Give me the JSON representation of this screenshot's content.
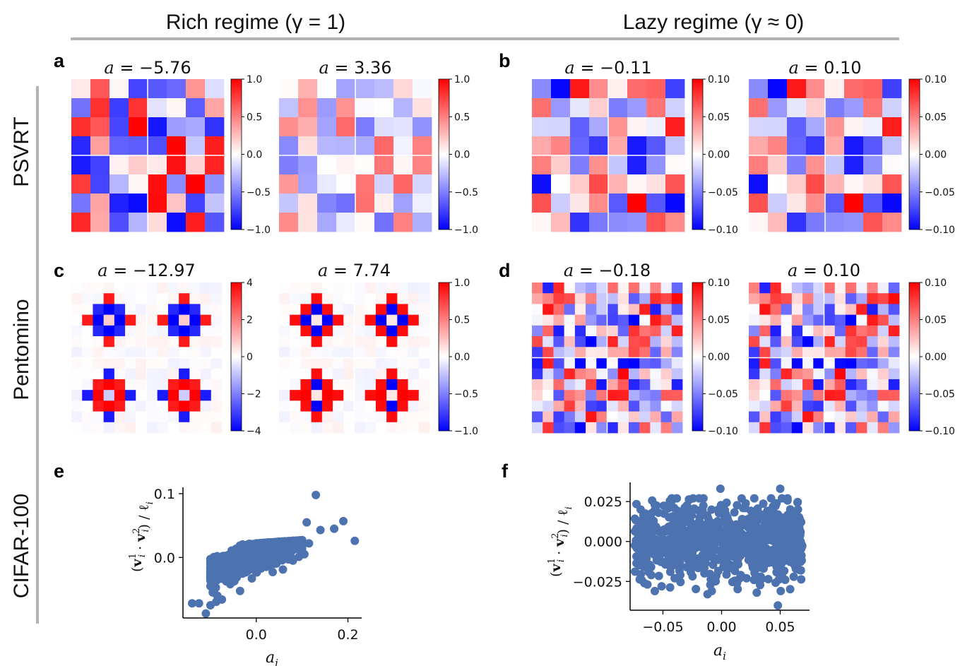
{
  "header": {
    "col_rich": "Rich regime (γ = 1)",
    "col_lazy": "Lazy regime (γ ≈ 0)"
  },
  "rows": {
    "psvrt": "PSVRT",
    "pentomino": "Pentomino",
    "cifar": "CIFAR-100"
  },
  "colors": {
    "point": "#4c72b0",
    "divider": "#b3b3b3",
    "cmap_neg": "#0000ff",
    "cmap_mid": "#ffffff",
    "cmap_pos": "#ff0000"
  },
  "chart_data": [
    {
      "id": "a",
      "letter": "a",
      "type": "heatmap",
      "maps": [
        {
          "title_var": "a",
          "title_val": "−5.76",
          "vmin": -1.0,
          "vmax": 1.0,
          "cb_ticks": [
            "1.0",
            "0.5",
            "0.0",
            "−0.5",
            "−1.0"
          ],
          "pattern": "psvrt_rich_1"
        },
        {
          "title_var": "a",
          "title_val": "3.36",
          "vmin": -1.0,
          "vmax": 1.0,
          "cb_ticks": [
            "1.0",
            "0.5",
            "0.0",
            "−0.5",
            "−1.0"
          ],
          "pattern": "psvrt_rich_2"
        }
      ]
    },
    {
      "id": "b",
      "letter": "b",
      "type": "heatmap",
      "maps": [
        {
          "title_var": "a",
          "title_val": "−0.11",
          "vmin": -0.1,
          "vmax": 0.1,
          "cb_ticks": [
            "0.10",
            "0.05",
            "0.00",
            "−0.05",
            "−0.10"
          ],
          "pattern": "psvrt_lazy_1"
        },
        {
          "title_var": "a",
          "title_val": "0.10",
          "vmin": -0.1,
          "vmax": 0.1,
          "cb_ticks": [
            "0.10",
            "0.05",
            "0.00",
            "−0.05",
            "−0.10"
          ],
          "pattern": "psvrt_lazy_2"
        }
      ]
    },
    {
      "id": "c",
      "letter": "c",
      "type": "heatmap",
      "maps": [
        {
          "title_var": "a",
          "title_val": "−12.97",
          "vmin": -4,
          "vmax": 4,
          "cb_ticks": [
            "4",
            "2",
            "0",
            "−2",
            "−4"
          ],
          "pattern": "pento_rich_1"
        },
        {
          "title_var": "a",
          "title_val": "7.74",
          "vmin": -1.0,
          "vmax": 1.0,
          "cb_ticks": [
            "1.0",
            "0.5",
            "0.0",
            "−0.5",
            "−1.0"
          ],
          "pattern": "pento_rich_2"
        }
      ]
    },
    {
      "id": "d",
      "letter": "d",
      "type": "heatmap",
      "maps": [
        {
          "title_var": "a",
          "title_val": "−0.18",
          "vmin": -0.1,
          "vmax": 0.1,
          "cb_ticks": [
            "0.10",
            "0.05",
            "0.00",
            "−0.05",
            "−0.10"
          ],
          "pattern": "pento_lazy_1"
        },
        {
          "title_var": "a",
          "title_val": "0.10",
          "vmin": -0.1,
          "vmax": 0.1,
          "cb_ticks": [
            "0.10",
            "0.05",
            "0.00",
            "−0.05",
            "−0.10"
          ],
          "pattern": "pento_lazy_2"
        }
      ]
    },
    {
      "id": "e",
      "letter": "e",
      "type": "scatter",
      "xlabel": "a_i",
      "ylabel": "(v_i^1 · v_i^2) / ℓ_i",
      "xlim": [
        -0.16,
        0.23
      ],
      "ylim": [
        -0.095,
        0.11
      ],
      "xticks": [
        0.0,
        0.2
      ],
      "xtick_labels": [
        "0.0",
        "0.2"
      ],
      "yticks": [
        0.0,
        0.1
      ],
      "ytick_labels": [
        "0.0",
        "0.1"
      ],
      "cloud": {
        "x_center": -0.01,
        "x_spread": 0.05,
        "slope": 0.25,
        "y_spread": 0.012,
        "count": 700
      },
      "outliers": [
        [
          0.13,
          0.098
        ],
        [
          0.19,
          0.057
        ],
        [
          0.215,
          0.026
        ],
        [
          0.17,
          0.045
        ],
        [
          0.11,
          0.055
        ],
        [
          0.14,
          0.043
        ],
        [
          0.115,
          0.022
        ],
        [
          0.095,
          0.012
        ],
        [
          0.08,
          -0.005
        ],
        [
          0.07,
          -0.003
        ],
        [
          0.105,
          0.005
        ],
        [
          -0.14,
          -0.072
        ],
        [
          -0.125,
          -0.072
        ],
        [
          -0.11,
          -0.088
        ],
        [
          -0.095,
          -0.055
        ],
        [
          -0.085,
          -0.06
        ],
        [
          -0.075,
          -0.066
        ],
        [
          -0.1,
          -0.075
        ],
        [
          0.093,
          0.001
        ]
      ]
    },
    {
      "id": "f",
      "letter": "f",
      "type": "scatter",
      "xlabel": "a_i",
      "ylabel": "(v_i^1 · v_i^2) / ℓ_i",
      "xlim": [
        -0.078,
        0.075
      ],
      "ylim": [
        -0.043,
        0.037
      ],
      "xticks": [
        -0.05,
        0.0,
        0.05
      ],
      "xtick_labels": [
        "−0.05",
        "0.00",
        "0.05"
      ],
      "yticks": [
        0.025,
        0.0,
        -0.025
      ],
      "ytick_labels": [
        "0.025",
        "0.000",
        "−0.025"
      ],
      "cloud": {
        "x_min": -0.074,
        "x_max": 0.069,
        "y_spread": 0.0115,
        "count": 900
      },
      "outliers": [
        [
          -0.001,
          0.033
        ],
        [
          0.05,
          0.033
        ],
        [
          -0.066,
          -0.016
        ],
        [
          -0.06,
          -0.021
        ],
        [
          -0.04,
          -0.023
        ],
        [
          0.03,
          -0.032
        ],
        [
          0.048,
          -0.04
        ],
        [
          -0.012,
          -0.033
        ],
        [
          -0.069,
          0.02
        ],
        [
          0.064,
          0.011
        ],
        [
          -0.072,
          -0.004
        ],
        [
          0.067,
          0.006
        ]
      ]
    }
  ]
}
